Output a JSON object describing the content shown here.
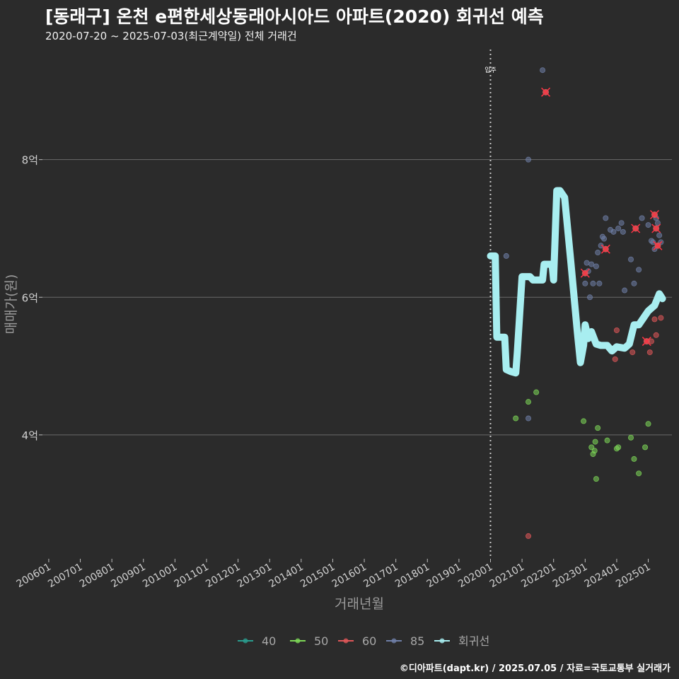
{
  "chart_data": {
    "type": "scatter",
    "title": "[동래구] 온천 e편한세상동래아시아드 아파트(2020) 회귀선 예측",
    "subtitle": "2020-07-20 ~ 2025-07-03(최근계약일) 전체 거래건",
    "caption": "©디아파트(dapt.kr) / 2025.07.05 / 자료=국토교통부 실거래가",
    "xlabel": "거래년월",
    "ylabel": "매매가(원)",
    "x_range": [
      2005.8,
      2025.75
    ],
    "y_range": [
      2.2,
      9.6
    ],
    "x_ticks": [
      {
        "label": "200601",
        "t": 2006.0
      },
      {
        "label": "200701",
        "t": 2007.0
      },
      {
        "label": "200801",
        "t": 2008.0
      },
      {
        "label": "200901",
        "t": 2009.0
      },
      {
        "label": "201001",
        "t": 2010.0
      },
      {
        "label": "201101",
        "t": 2011.0
      },
      {
        "label": "201201",
        "t": 2012.0
      },
      {
        "label": "201301",
        "t": 2013.0
      },
      {
        "label": "201401",
        "t": 2014.0
      },
      {
        "label": "201501",
        "t": 2015.0
      },
      {
        "label": "201601",
        "t": 2016.0
      },
      {
        "label": "201701",
        "t": 2017.0
      },
      {
        "label": "201801",
        "t": 2018.0
      },
      {
        "label": "201901",
        "t": 2019.0
      },
      {
        "label": "202001",
        "t": 2020.0
      },
      {
        "label": "202101",
        "t": 2021.0
      },
      {
        "label": "202201",
        "t": 2022.0
      },
      {
        "label": "202301",
        "t": 2023.0
      },
      {
        "label": "202401",
        "t": 2024.0
      },
      {
        "label": "202501",
        "t": 2025.0
      }
    ],
    "y_ticks": [
      {
        "label": "4억",
        "v": 4
      },
      {
        "label": "6억",
        "v": 6
      },
      {
        "label": "8억",
        "v": 8
      }
    ],
    "annotation": {
      "label": "입주",
      "t": 2020.0
    },
    "legend": [
      {
        "name": "40",
        "color": "#2a9d8f"
      },
      {
        "name": "50",
        "color": "#7ed957"
      },
      {
        "name": "60",
        "color": "#e15759"
      },
      {
        "name": "85",
        "color": "#6f7fa8"
      },
      {
        "name": "회귀선",
        "color": "#a8eef0"
      }
    ],
    "series": [
      {
        "name": "40",
        "color": "#2a9d8f",
        "points": []
      },
      {
        "name": "50",
        "color": "#7ed957",
        "points": [
          [
            2020.8,
            4.24
          ],
          [
            2021.2,
            4.48
          ],
          [
            2021.45,
            4.62
          ],
          [
            2022.95,
            4.2
          ],
          [
            2023.2,
            3.82
          ],
          [
            2023.25,
            3.72
          ],
          [
            2023.3,
            3.77
          ],
          [
            2023.32,
            3.9
          ],
          [
            2023.35,
            3.36
          ],
          [
            2023.4,
            4.1
          ],
          [
            2023.7,
            3.92
          ],
          [
            2024.0,
            3.8
          ],
          [
            2024.05,
            3.82
          ],
          [
            2024.45,
            3.96
          ],
          [
            2024.55,
            3.65
          ],
          [
            2024.7,
            3.44
          ],
          [
            2024.9,
            3.82
          ],
          [
            2025.0,
            4.16
          ]
        ]
      },
      {
        "name": "60",
        "color": "#e15759",
        "points": [
          [
            2021.2,
            2.53
          ],
          [
            2023.95,
            5.1
          ],
          [
            2024.0,
            5.52
          ],
          [
            2024.5,
            5.2
          ],
          [
            2025.05,
            5.2
          ],
          [
            2025.1,
            5.36
          ],
          [
            2025.25,
            5.45
          ],
          [
            2025.4,
            5.7
          ],
          [
            2025.2,
            5.68
          ]
        ]
      },
      {
        "name": "85",
        "color": "#6f7fa8",
        "points": [
          [
            2020.5,
            6.6
          ],
          [
            2021.2,
            4.24
          ],
          [
            2021.2,
            8.0
          ],
          [
            2021.65,
            9.3
          ],
          [
            2023.0,
            6.2
          ],
          [
            2023.05,
            6.5
          ],
          [
            2023.1,
            6.38
          ],
          [
            2023.15,
            6.0
          ],
          [
            2023.2,
            6.48
          ],
          [
            2023.25,
            6.2
          ],
          [
            2023.35,
            6.45
          ],
          [
            2023.4,
            6.65
          ],
          [
            2023.45,
            6.2
          ],
          [
            2023.5,
            6.75
          ],
          [
            2023.55,
            6.88
          ],
          [
            2023.6,
            6.85
          ],
          [
            2023.65,
            7.15
          ],
          [
            2023.8,
            6.98
          ],
          [
            2023.9,
            6.95
          ],
          [
            2024.05,
            7.0
          ],
          [
            2024.15,
            7.08
          ],
          [
            2024.2,
            6.95
          ],
          [
            2024.25,
            6.1
          ],
          [
            2024.45,
            6.55
          ],
          [
            2024.55,
            6.2
          ],
          [
            2024.7,
            6.4
          ],
          [
            2024.8,
            7.15
          ],
          [
            2025.0,
            7.05
          ],
          [
            2025.1,
            6.82
          ],
          [
            2025.25,
            7.15
          ],
          [
            2025.3,
            7.08
          ],
          [
            2025.35,
            6.9
          ],
          [
            2025.4,
            6.8
          ],
          [
            2025.15,
            6.8
          ],
          [
            2025.2,
            6.7
          ]
        ]
      }
    ],
    "highlighted": [
      [
        2021.75,
        8.98
      ],
      [
        2023.0,
        6.35
      ],
      [
        2023.65,
        6.7
      ],
      [
        2024.6,
        7.0
      ],
      [
        2024.95,
        5.36
      ],
      [
        2025.2,
        7.2
      ],
      [
        2025.25,
        7.0
      ],
      [
        2025.3,
        6.75
      ]
    ],
    "regression": [
      [
        2020.0,
        6.6
      ],
      [
        2020.15,
        6.6
      ],
      [
        2020.2,
        5.42
      ],
      [
        2020.45,
        5.42
      ],
      [
        2020.5,
        4.95
      ],
      [
        2020.65,
        4.92
      ],
      [
        2020.8,
        4.9
      ],
      [
        2020.85,
        5.2
      ],
      [
        2021.0,
        6.3
      ],
      [
        2021.25,
        6.3
      ],
      [
        2021.35,
        6.25
      ],
      [
        2021.65,
        6.25
      ],
      [
        2021.7,
        6.48
      ],
      [
        2021.95,
        6.48
      ],
      [
        2022.0,
        6.25
      ],
      [
        2022.1,
        7.55
      ],
      [
        2022.2,
        7.55
      ],
      [
        2022.35,
        7.45
      ],
      [
        2022.55,
        6.5
      ],
      [
        2022.75,
        5.5
      ],
      [
        2022.85,
        5.05
      ],
      [
        2022.95,
        5.3
      ],
      [
        2023.0,
        5.6
      ],
      [
        2023.1,
        5.4
      ],
      [
        2023.2,
        5.5
      ],
      [
        2023.35,
        5.32
      ],
      [
        2023.5,
        5.3
      ],
      [
        2023.7,
        5.3
      ],
      [
        2023.85,
        5.22
      ],
      [
        2024.0,
        5.28
      ],
      [
        2024.25,
        5.26
      ],
      [
        2024.4,
        5.32
      ],
      [
        2024.55,
        5.6
      ],
      [
        2024.7,
        5.6
      ],
      [
        2024.85,
        5.7
      ],
      [
        2025.0,
        5.8
      ],
      [
        2025.2,
        5.88
      ],
      [
        2025.35,
        6.05
      ],
      [
        2025.45,
        5.98
      ]
    ]
  }
}
